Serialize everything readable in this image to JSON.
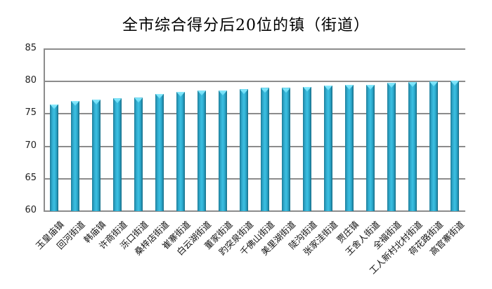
{
  "chart_data": {
    "type": "bar",
    "title": "全市综合得分后20位的镇（街道）",
    "xlabel": "",
    "ylabel": "",
    "ylim": [
      60,
      85
    ],
    "yticks": [
      60,
      65,
      70,
      75,
      80,
      85
    ],
    "grid": true,
    "legend": null,
    "bar_color": "#2fa9cc",
    "categories": [
      "玉皇庙镇",
      "回河街道",
      "韩庙镇",
      "许商街道",
      "泺口街道",
      "桑梓店街道",
      "崔寨街道",
      "白云湖街道",
      "董家街道",
      "趵突泉街道",
      "千佛山街道",
      "美里湖街道",
      "陡沟街道",
      "张家洼街道",
      "贾庄镇",
      "王舍人街道",
      "全福街道",
      "工人新村北村街道",
      "荷花路街道",
      "高官寨街道"
    ],
    "values": [
      76.5,
      77.0,
      77.2,
      77.4,
      77.5,
      78.1,
      78.4,
      78.6,
      78.6,
      78.8,
      79.0,
      79.0,
      79.2,
      79.4,
      79.5,
      79.5,
      79.8,
      79.9,
      80.0,
      80.1
    ]
  }
}
